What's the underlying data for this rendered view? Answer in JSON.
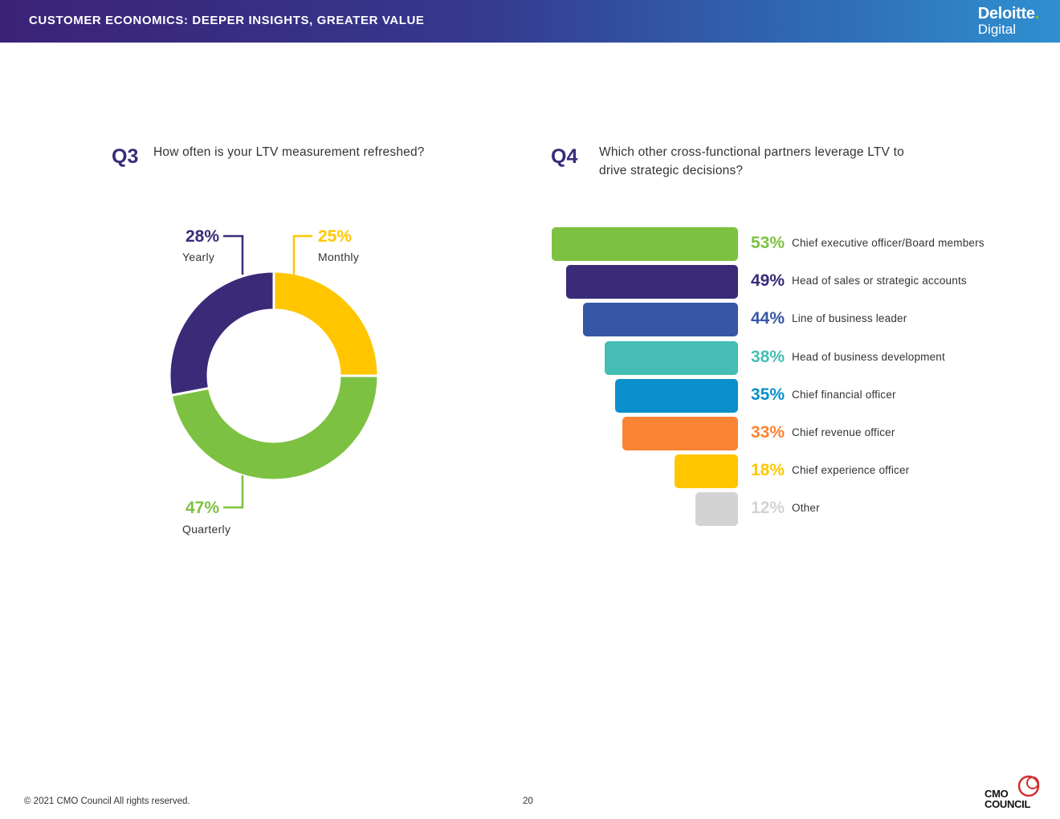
{
  "header": {
    "title": "CUSTOMER ECONOMICS: DEEPER INSIGHTS, GREATER VALUE",
    "logo_main": "Deloitte",
    "logo_dot": ".",
    "logo_sub": "Digital"
  },
  "q3": {
    "label": "Q3",
    "question": "How often is your LTV measurement refreshed?"
  },
  "q4": {
    "label": "Q4",
    "question_line1": "Which other cross-functional partners leverage LTV to",
    "question_line2": "drive strategic decisions?"
  },
  "chart_data": [
    {
      "type": "pie",
      "variant": "donut",
      "categories": [
        "Monthly",
        "Quarterly",
        "Yearly"
      ],
      "values": [
        25,
        47,
        28
      ],
      "value_labels": [
        "25%",
        "47%",
        "28%"
      ],
      "colors": [
        "#ffc600",
        "#7dc142",
        "#3a2a78"
      ]
    },
    {
      "type": "bar",
      "orientation": "horizontal",
      "categories": [
        "Chief executive officer/Board members",
        "Head of sales or strategic accounts",
        "Line of business leader",
        "Head of business development",
        "Chief financial officer",
        "Chief revenue officer",
        "Chief experience officer",
        "Other"
      ],
      "values": [
        53,
        49,
        44,
        38,
        35,
        33,
        18,
        12
      ],
      "value_labels": [
        "53%",
        "49%",
        "44%",
        "38%",
        "35%",
        "33%",
        "18%",
        "12%"
      ],
      "colors": [
        "#7dc142",
        "#3a2a78",
        "#3656a6",
        "#45bdb5",
        "#0a8fcb",
        "#fb8334",
        "#ffc600",
        "#d3d3d3"
      ]
    }
  ],
  "footer": {
    "copyright": "© 2021 CMO Council  All rights reserved.",
    "page_number": "20",
    "cmo_logo_line1": "CMO",
    "cmo_logo_line2": "COUNCIL"
  }
}
